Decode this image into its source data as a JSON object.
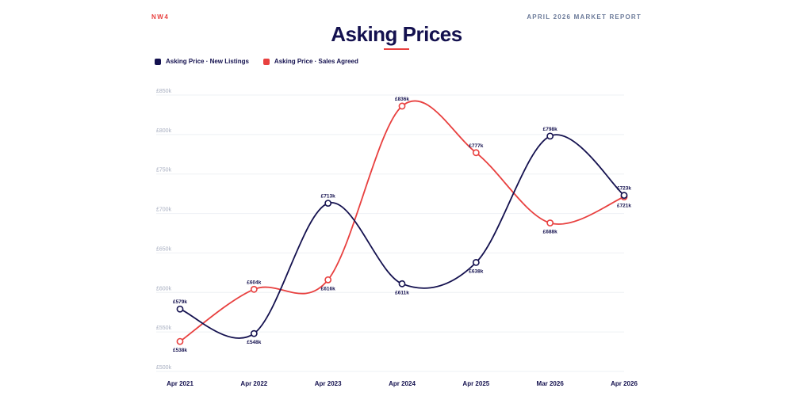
{
  "header": {
    "brand": "NW4",
    "report": "APRIL 2026 MARKET REPORT",
    "title": "Asking Prices"
  },
  "colors": {
    "navy": "#14114f",
    "red": "#e8403f",
    "grid": "#eef0f4",
    "muted": "#a7aec0"
  },
  "chart_data": {
    "type": "line",
    "title": "Asking Prices",
    "legend_position": "top-left",
    "grid": true,
    "x": [
      "Apr 2021",
      "Apr 2022",
      "Apr 2023",
      "Apr 2024",
      "Apr 2025",
      "Mar 2026",
      "Apr 2026"
    ],
    "ylim": [
      500,
      850
    ],
    "yticks": [
      500,
      550,
      600,
      650,
      700,
      750,
      800,
      850
    ],
    "ytick_labels": [
      "£500k",
      "£550k",
      "£600k",
      "£650k",
      "£700k",
      "£750k",
      "£800k",
      "£850k"
    ],
    "series": [
      {
        "name": "Asking Price · New Listings",
        "color": "#14114f",
        "values": [
          579,
          548,
          713,
          611,
          638,
          798,
          723
        ],
        "labels": [
          "£579k",
          "£548k",
          "£713k",
          "£611k",
          "£638k",
          "£798k",
          "£723k"
        ]
      },
      {
        "name": "Asking Price · Sales Agreed",
        "color": "#e8403f",
        "values": [
          538,
          604,
          616,
          836,
          777,
          688,
          721
        ],
        "labels": [
          "£538k",
          "£604k",
          "£616k",
          "£836k",
          "£777k",
          "£688k",
          "£721k"
        ]
      }
    ]
  }
}
